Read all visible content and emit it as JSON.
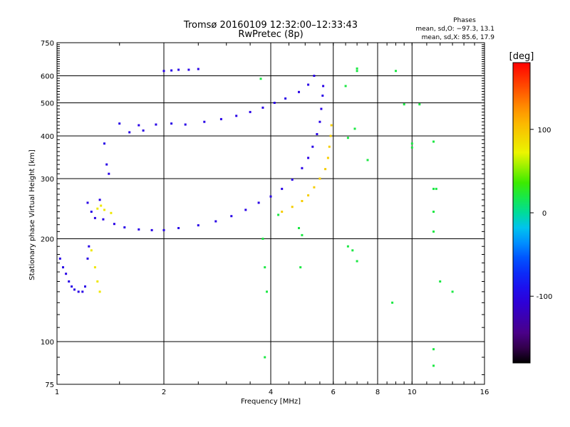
{
  "chart_data": {
    "type": "scatter",
    "title": "Tromsø 20160109 12:32:00–12:33:43",
    "subtitle": "RwPretec (8p)",
    "phases": {
      "heading": "Phases",
      "line_o": "mean, sd,O: −97.3, 13.1",
      "line_x": "mean, sd,X:  85.6, 17.9"
    },
    "xlabel": "Frequency [MHz]",
    "ylabel": "Stationary phase Virtual Height [km]",
    "x_scale": "log",
    "y_scale": "log",
    "xlim": [
      1,
      16
    ],
    "ylim": [
      75,
      750
    ],
    "x_ticks": [
      1,
      2,
      4,
      6,
      8,
      10,
      16
    ],
    "x_tick_labels": [
      "1",
      "2",
      "4",
      "6",
      "8",
      "10",
      "16"
    ],
    "y_ticks": [
      75,
      100,
      200,
      300,
      400,
      500,
      600,
      750
    ],
    "y_tick_labels": [
      "75",
      "100",
      "200",
      "300",
      "400",
      "500",
      "600",
      "750"
    ],
    "grid": true,
    "colorbar": {
      "label": "[deg]",
      "range": [
        -180,
        180
      ],
      "ticks": [
        100,
        0,
        -100
      ],
      "tick_labels": [
        "100",
        "0",
        "-100"
      ],
      "colormap": "rainbow"
    },
    "series": [
      {
        "key": "o_lower",
        "phase_deg": -100,
        "points": [
          [
            1.35,
            228
          ],
          [
            1.45,
            221
          ],
          [
            1.55,
            216
          ],
          [
            1.7,
            213
          ],
          [
            1.85,
            212
          ],
          [
            2.0,
            212
          ],
          [
            2.2,
            215
          ],
          [
            2.5,
            219
          ],
          [
            2.8,
            225
          ],
          [
            3.1,
            233
          ],
          [
            3.4,
            243
          ],
          [
            3.7,
            255
          ],
          [
            4.0,
            266
          ],
          [
            4.3,
            280
          ],
          [
            4.6,
            298
          ],
          [
            4.9,
            322
          ],
          [
            5.1,
            345
          ],
          [
            5.25,
            372
          ],
          [
            5.4,
            405
          ],
          [
            5.5,
            440
          ],
          [
            5.55,
            480
          ],
          [
            5.6,
            525
          ],
          [
            5.62,
            560
          ]
        ]
      },
      {
        "key": "x_lower",
        "phase_deg": 95,
        "points": [
          [
            4.3,
            240
          ],
          [
            4.6,
            248
          ],
          [
            4.9,
            258
          ],
          [
            5.1,
            268
          ],
          [
            5.3,
            283
          ],
          [
            5.5,
            300
          ],
          [
            5.7,
            320
          ],
          [
            5.8,
            345
          ],
          [
            5.85,
            372
          ],
          [
            5.9,
            400
          ],
          [
            5.93,
            430
          ]
        ]
      },
      {
        "key": "o_upper",
        "phase_deg": -100,
        "points": [
          [
            1.5,
            435
          ],
          [
            1.7,
            430
          ],
          [
            1.9,
            432
          ],
          [
            2.1,
            435
          ],
          [
            2.3,
            432
          ],
          [
            2.6,
            440
          ],
          [
            2.9,
            448
          ],
          [
            3.2,
            458
          ],
          [
            3.5,
            470
          ],
          [
            3.8,
            484
          ],
          [
            4.1,
            500
          ],
          [
            4.4,
            515
          ],
          [
            4.8,
            538
          ],
          [
            5.1,
            565
          ],
          [
            5.3,
            600
          ]
        ]
      },
      {
        "key": "e_layer",
        "phase_deg": -100,
        "points": [
          [
            1.02,
            175
          ],
          [
            1.04,
            165
          ],
          [
            1.06,
            158
          ],
          [
            1.08,
            150
          ],
          [
            1.1,
            145
          ],
          [
            1.12,
            142
          ],
          [
            1.15,
            140
          ],
          [
            1.18,
            140
          ],
          [
            1.2,
            145
          ],
          [
            1.22,
            175
          ],
          [
            1.23,
            190
          ]
        ]
      },
      {
        "key": "e_layer_x",
        "phase_deg": 80,
        "points": [
          [
            1.25,
            185
          ],
          [
            1.28,
            165
          ],
          [
            1.3,
            150
          ],
          [
            1.32,
            140
          ],
          [
            1.3,
            245
          ],
          [
            1.33,
            250
          ],
          [
            1.36,
            243
          ],
          [
            1.42,
            238
          ]
        ]
      },
      {
        "key": "spread_low",
        "phase_deg": -100,
        "points": [
          [
            1.22,
            255
          ],
          [
            1.25,
            240
          ],
          [
            1.28,
            230
          ],
          [
            1.32,
            260
          ],
          [
            1.36,
            380
          ],
          [
            1.38,
            330
          ],
          [
            1.4,
            310
          ],
          [
            1.6,
            410
          ],
          [
            1.75,
            415
          ]
        ]
      },
      {
        "key": "high_echo",
        "phase_deg": -100,
        "points": [
          [
            2.0,
            620
          ],
          [
            2.1,
            622
          ],
          [
            2.2,
            625
          ],
          [
            2.35,
            625
          ],
          [
            2.5,
            628
          ]
        ]
      },
      {
        "key": "sporadic",
        "phase_deg": 20,
        "points": [
          [
            3.75,
            588
          ],
          [
            3.8,
            200
          ],
          [
            3.85,
            165
          ],
          [
            3.85,
            90
          ],
          [
            4.8,
            215
          ],
          [
            4.9,
            205
          ],
          [
            6.5,
            560
          ],
          [
            7.0,
            630
          ],
          [
            7.0,
            620
          ],
          [
            6.9,
            420
          ],
          [
            6.6,
            395
          ],
          [
            7.5,
            340
          ],
          [
            9.0,
            620
          ],
          [
            9.5,
            495
          ],
          [
            10.5,
            495
          ],
          [
            11.5,
            385
          ],
          [
            11.5,
            280
          ],
          [
            11.5,
            240
          ],
          [
            11.5,
            210
          ],
          [
            11.7,
            280
          ],
          [
            12.0,
            150
          ],
          [
            13.0,
            140
          ],
          [
            11.5,
            95
          ],
          [
            11.5,
            85
          ],
          [
            10.0,
            380
          ],
          [
            10.0,
            370
          ],
          [
            8.8,
            130
          ],
          [
            6.6,
            190
          ],
          [
            6.8,
            185
          ],
          [
            7.0,
            172
          ],
          [
            4.2,
            235
          ],
          [
            4.85,
            165
          ],
          [
            3.9,
            140
          ]
        ]
      }
    ]
  }
}
